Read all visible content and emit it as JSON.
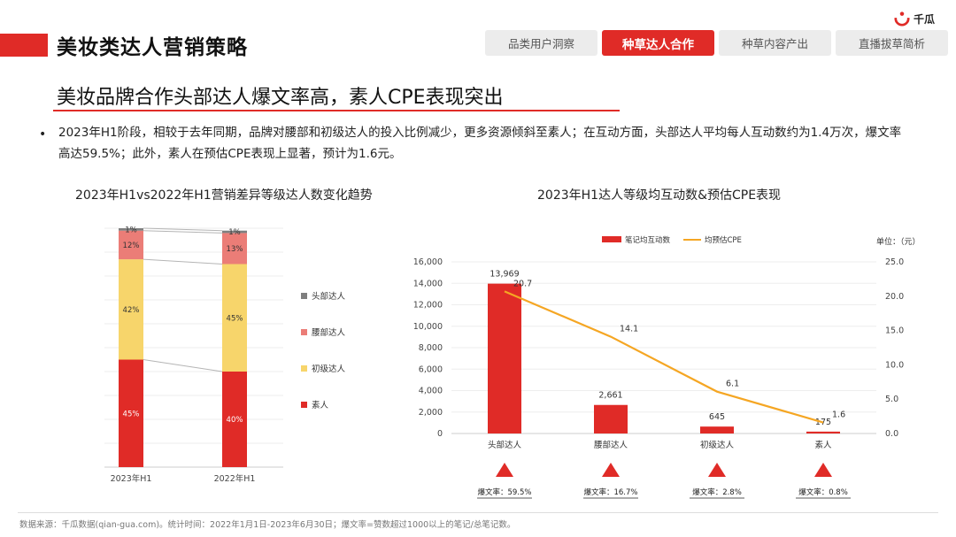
{
  "brand": {
    "logo_text": "千瓜",
    "accent": "#e02b27"
  },
  "header": {
    "title": "美妆类达人营销策略"
  },
  "tabs": [
    {
      "label": "品类用户洞察",
      "active": false
    },
    {
      "label": "种草达人合作",
      "active": true
    },
    {
      "label": "种草内容产出",
      "active": false
    },
    {
      "label": "直播拔草简析",
      "active": false
    }
  ],
  "main": {
    "subtitle": "美妆品牌合作头部达人爆文率高，素人CPE表现突出",
    "bullet": "2023年H1阶段，相较于去年同期，品牌对腰部和初级达人的投入比例减少，更多资源倾斜至素人；在互动方面，头部达人平均每人互动数约为1.4万次，爆文率高达59.5%；此外，素人在预估CPE表现上显著，预计为1.6元。"
  },
  "chart_data": [
    {
      "type": "bar",
      "stacked": true,
      "percent": true,
      "title": "2023年H1vs2022年H1营销差异等级达人数变化趋势",
      "categories": [
        "2023年H1",
        "2022年H1"
      ],
      "series": [
        {
          "name": "素人",
          "values": [
            45,
            40
          ],
          "labels": [
            "45%",
            "40%"
          ],
          "color": "#e02b27"
        },
        {
          "name": "初级达人",
          "values": [
            42,
            45
          ],
          "labels": [
            "42%",
            "45%"
          ],
          "color": "#f7d56b"
        },
        {
          "name": "腰部达人",
          "values": [
            12,
            13
          ],
          "labels": [
            "12%",
            "13%"
          ],
          "color": "#eb7d77"
        },
        {
          "name": "头部达人",
          "values": [
            1,
            1
          ],
          "labels": [
            "1%",
            "1%"
          ],
          "color": "#7f7f7f"
        }
      ],
      "legend": "right"
    },
    {
      "type": "bar",
      "title": "2023年H1达人等级均互动数&预估CPE表现",
      "unit_label": "单位：（元）",
      "categories": [
        "头部达人",
        "腰部达人",
        "初级达人",
        "素人"
      ],
      "series": [
        {
          "name": "笔记均互动数",
          "type": "bar",
          "axis": "left",
          "values": [
            13969,
            2661,
            645,
            175
          ],
          "labels": [
            "13,969",
            "2,661",
            "645",
            "175"
          ],
          "color": "#e02b27"
        },
        {
          "name": "均预估CPE",
          "type": "line",
          "axis": "right",
          "values": [
            20.7,
            14.1,
            6.1,
            1.6
          ],
          "labels": [
            "20.7",
            "14.1",
            "6.1",
            "1.6"
          ],
          "color": "#f5a623"
        }
      ],
      "y_left": {
        "min": 0,
        "max": 16000,
        "ticks": [
          "0",
          "2,000",
          "4,000",
          "6,000",
          "8,000",
          "10,000",
          "12,000",
          "14,000",
          "16,000"
        ]
      },
      "y_right": {
        "min": 0,
        "max": 25,
        "ticks": [
          "0.0",
          "5.0",
          "10.0",
          "15.0",
          "20.0",
          "25.0"
        ]
      },
      "viral_rates": [
        "爆文率：59.5%",
        "爆文率：16.7%",
        "爆文率：2.8%",
        "爆文率：0.8%"
      ],
      "legend": "top",
      "grid": true
    }
  ],
  "footer": {
    "source": "数据来源：千瓜数据(qian-gua.com)。统计时间：2022年1月1日-2023年6月30日；爆文率=赞数超过1000以上的笔记/总笔记数。"
  }
}
